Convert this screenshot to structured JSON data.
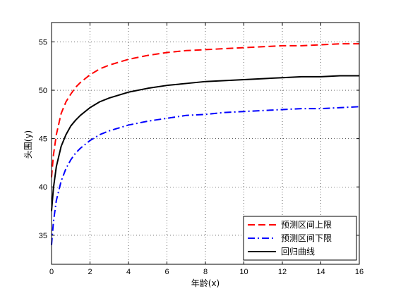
{
  "chart_data": {
    "type": "line",
    "xlabel": "年龄(x)",
    "ylabel": "头围(y)",
    "xlim": [
      0,
      16
    ],
    "ylim": [
      32,
      57
    ],
    "xticks": [
      0,
      2,
      4,
      6,
      8,
      10,
      12,
      14,
      16
    ],
    "yticks": [
      35,
      40,
      45,
      50,
      55
    ],
    "grid": true,
    "legend_position": "bottom-right",
    "x": [
      0,
      0.1,
      0.25,
      0.5,
      0.75,
      1,
      1.25,
      1.5,
      2,
      2.5,
      3,
      3.5,
      4,
      5,
      6,
      7,
      8,
      9,
      10,
      11,
      12,
      13,
      14,
      15,
      16
    ],
    "series": [
      {
        "name": "预测区间上限",
        "color": "#ff0000",
        "dash": "dashed",
        "values": [
          41.0,
          43.3,
          45.4,
          47.6,
          48.8,
          49.6,
          50.3,
          50.8,
          51.6,
          52.2,
          52.6,
          52.9,
          53.2,
          53.6,
          53.9,
          54.1,
          54.2,
          54.3,
          54.4,
          54.5,
          54.6,
          54.6,
          54.7,
          54.8,
          54.8
        ]
      },
      {
        "name": "预测区间下限",
        "color": "#0000ff",
        "dash": "dash-dot",
        "values": [
          34.0,
          36.4,
          38.6,
          40.6,
          41.9,
          42.8,
          43.5,
          44.0,
          44.8,
          45.4,
          45.8,
          46.1,
          46.4,
          46.8,
          47.1,
          47.4,
          47.5,
          47.7,
          47.8,
          47.9,
          48.0,
          48.1,
          48.1,
          48.2,
          48.3
        ]
      },
      {
        "name": "回归曲线",
        "color": "#000000",
        "dash": "solid",
        "values": [
          37.5,
          39.9,
          42.1,
          44.2,
          45.4,
          46.3,
          46.9,
          47.4,
          48.2,
          48.8,
          49.2,
          49.5,
          49.8,
          50.2,
          50.5,
          50.7,
          50.9,
          51.0,
          51.1,
          51.2,
          51.3,
          51.4,
          51.4,
          51.5,
          51.5
        ]
      }
    ]
  }
}
